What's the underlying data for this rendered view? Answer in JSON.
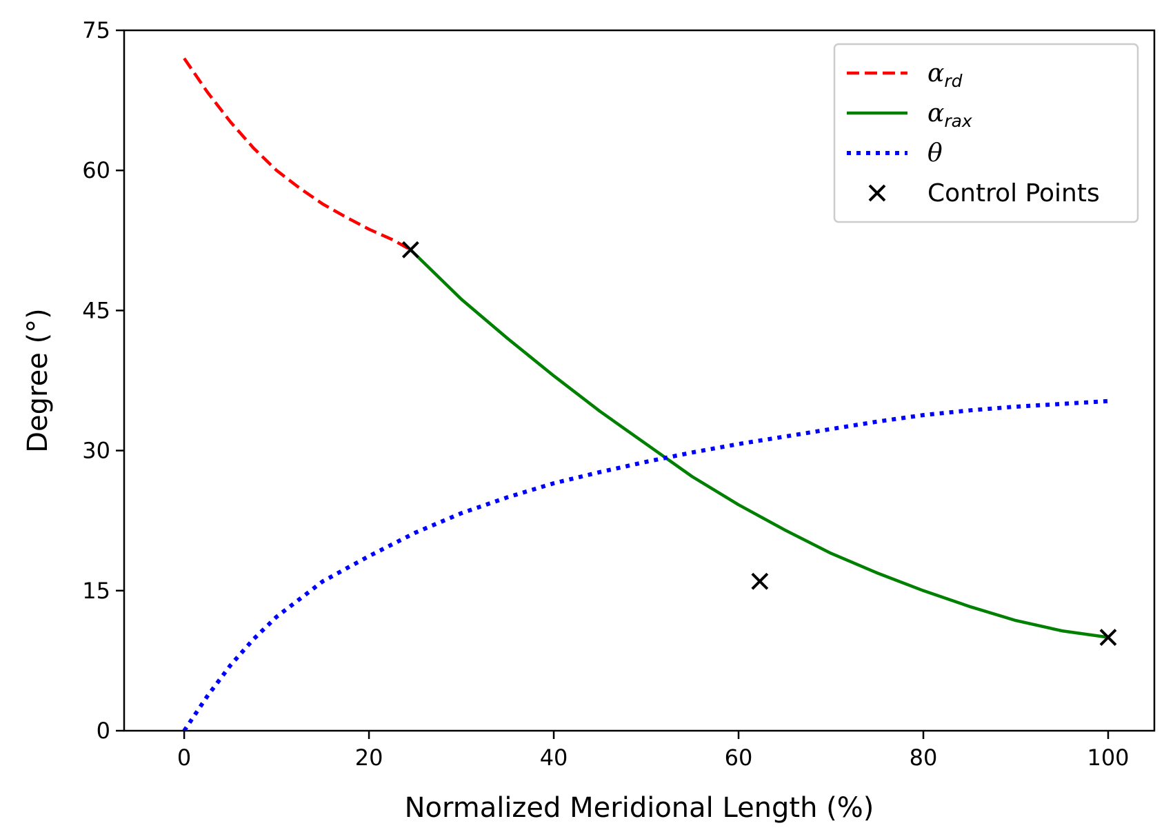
{
  "chart_data": {
    "type": "line",
    "title": "",
    "xlabel": "Normalized Meridional Length (%)",
    "ylabel": "Degree (°)",
    "xlim": [
      -6.5,
      105
    ],
    "ylim": [
      0,
      75
    ],
    "xticks": [
      0,
      20,
      40,
      60,
      80,
      100
    ],
    "yticks": [
      0,
      15,
      30,
      45,
      60,
      75
    ],
    "grid": false,
    "legend_position": "top-right",
    "series": [
      {
        "name": "α_rd",
        "legend_symbol": "α",
        "legend_subscript": "rd",
        "style": "dashed",
        "color": "#ff0000",
        "x": [
          0,
          2.5,
          5,
          7.5,
          10,
          12.5,
          15,
          17.5,
          20,
          22.5,
          24.5
        ],
        "y": [
          72,
          68.4,
          65.2,
          62.4,
          60.0,
          58.1,
          56.4,
          55.0,
          53.7,
          52.6,
          51.5
        ]
      },
      {
        "name": "α_rax",
        "legend_symbol": "α",
        "legend_subscript": "rax",
        "style": "solid",
        "color": "#008000",
        "x": [
          24.5,
          30,
          35,
          40,
          45,
          50,
          55,
          60,
          65,
          70,
          75,
          80,
          85,
          90,
          95,
          100
        ],
        "y": [
          51.5,
          46.2,
          42.0,
          38.0,
          34.2,
          30.7,
          27.2,
          24.2,
          21.5,
          19.0,
          16.9,
          15.0,
          13.3,
          11.8,
          10.7,
          10.0
        ]
      },
      {
        "name": "θ",
        "legend_symbol": "θ",
        "legend_subscript": "",
        "style": "dotted",
        "color": "#0000ff",
        "x": [
          0,
          2.5,
          5,
          7.5,
          10,
          15,
          20,
          25,
          30,
          35,
          40,
          45,
          50,
          55,
          60,
          65,
          70,
          75,
          80,
          85,
          90,
          95,
          100
        ],
        "y": [
          0,
          3.7,
          7.0,
          9.8,
          12.2,
          16.0,
          18.7,
          21.2,
          23.3,
          25.0,
          26.5,
          27.7,
          28.8,
          29.8,
          30.7,
          31.5,
          32.3,
          33.1,
          33.8,
          34.3,
          34.7,
          35.0,
          35.3
        ]
      },
      {
        "name": "Control Points",
        "legend_symbol": "",
        "legend_subscript": "",
        "style": "markers",
        "marker": "x",
        "color": "#000000",
        "x": [
          24.5,
          62.3,
          100
        ],
        "y": [
          51.5,
          16.0,
          10.0
        ]
      }
    ]
  }
}
